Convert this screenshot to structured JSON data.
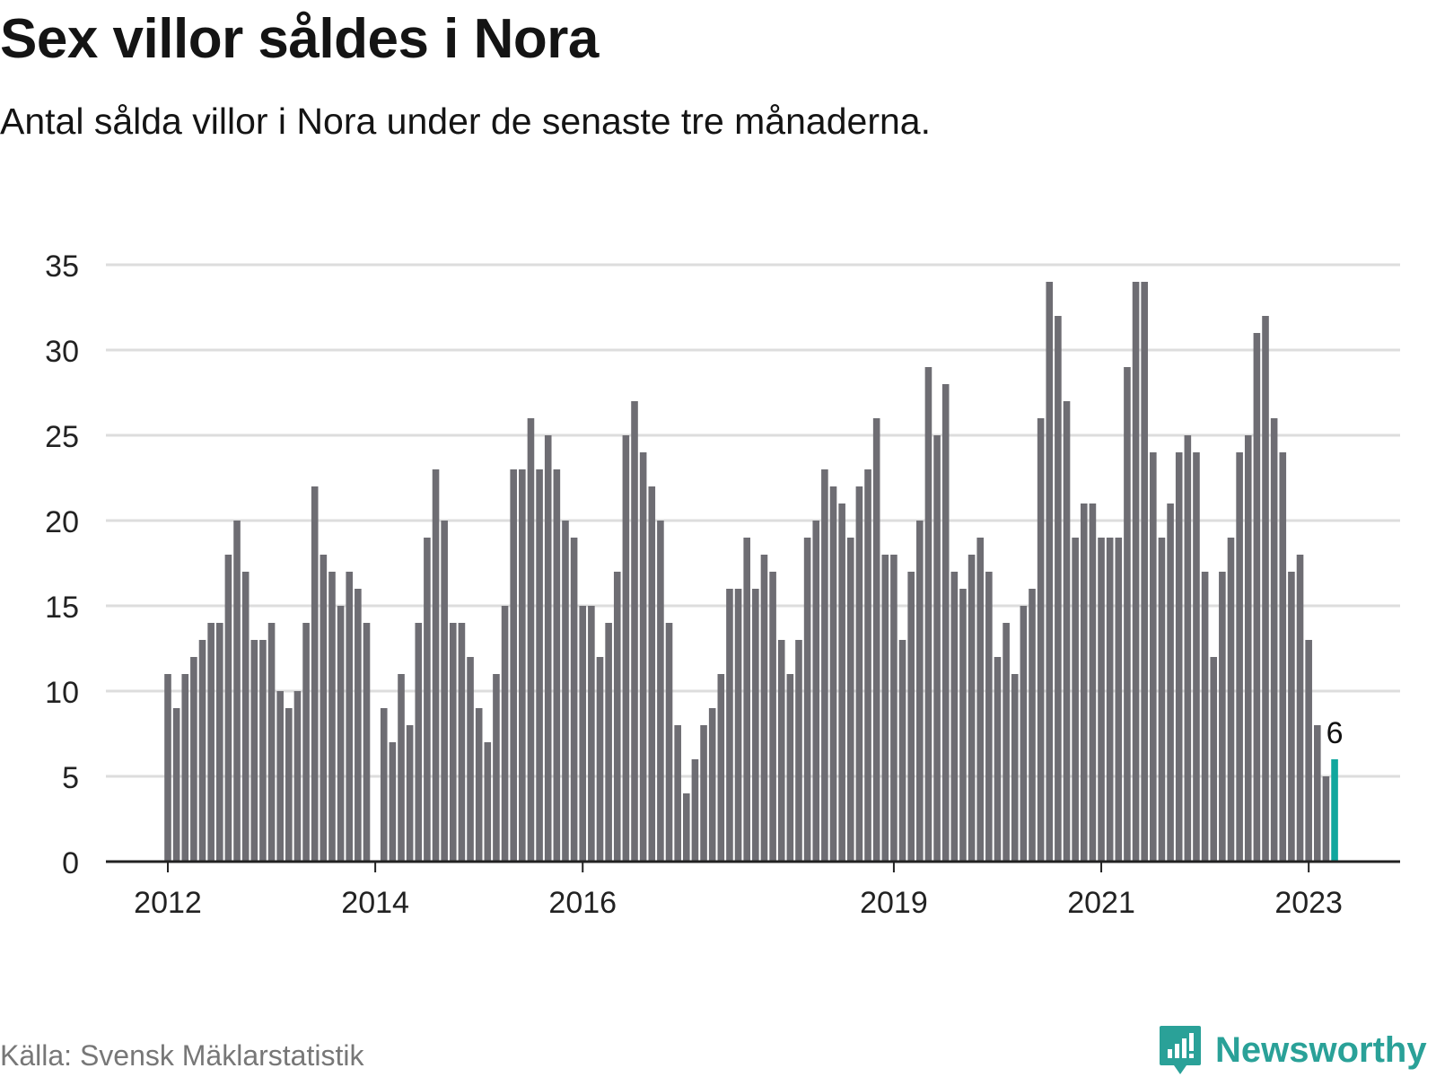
{
  "header": {
    "title": "Sex villor såldes i Nora",
    "subtitle": "Antal sålda villor i Nora under de senaste tre månaderna."
  },
  "footer": {
    "source": "Källa: Svensk Mäklarstatistik",
    "brand": "Newsworthy"
  },
  "colors": {
    "bar": "#6e6d73",
    "highlight": "#11a79e",
    "grid": "#dddddd",
    "axis": "#222222",
    "brand": "#2aa198"
  },
  "chart_data": {
    "type": "bar",
    "title": "Sex villor såldes i Nora",
    "xlabel": "",
    "ylabel": "",
    "ylim": [
      0,
      35
    ],
    "yticks": [
      0,
      5,
      10,
      15,
      20,
      25,
      30,
      35
    ],
    "x_tick_labels": [
      {
        "label": "2012",
        "index": 0
      },
      {
        "label": "2014",
        "index": 24
      },
      {
        "label": "2016",
        "index": 48
      },
      {
        "label": "2019",
        "index": 84
      },
      {
        "label": "2021",
        "index": 108
      },
      {
        "label": "2023",
        "index": 132
      }
    ],
    "grid": true,
    "highlight_index": 135,
    "highlight_label": "6",
    "values": [
      11,
      9,
      11,
      12,
      13,
      14,
      14,
      18,
      20,
      17,
      13,
      13,
      14,
      10,
      9,
      10,
      14,
      22,
      18,
      17,
      15,
      17,
      16,
      14,
      0,
      9,
      7,
      11,
      8,
      14,
      19,
      23,
      20,
      14,
      14,
      12,
      9,
      7,
      11,
      15,
      23,
      23,
      26,
      23,
      25,
      23,
      20,
      19,
      15,
      15,
      12,
      14,
      17,
      25,
      27,
      24,
      22,
      20,
      14,
      8,
      4,
      6,
      8,
      9,
      11,
      16,
      16,
      19,
      16,
      18,
      17,
      13,
      11,
      13,
      19,
      20,
      23,
      22,
      21,
      19,
      22,
      23,
      26,
      18,
      18,
      13,
      17,
      20,
      29,
      25,
      28,
      17,
      16,
      18,
      19,
      17,
      12,
      14,
      11,
      15,
      16,
      26,
      34,
      32,
      27,
      19,
      21,
      21,
      19,
      19,
      19,
      29,
      34,
      34,
      24,
      19,
      21,
      24,
      25,
      24,
      17,
      12,
      17,
      19,
      24,
      25,
      31,
      32,
      26,
      24,
      17,
      18,
      13,
      8,
      5,
      6
    ]
  }
}
